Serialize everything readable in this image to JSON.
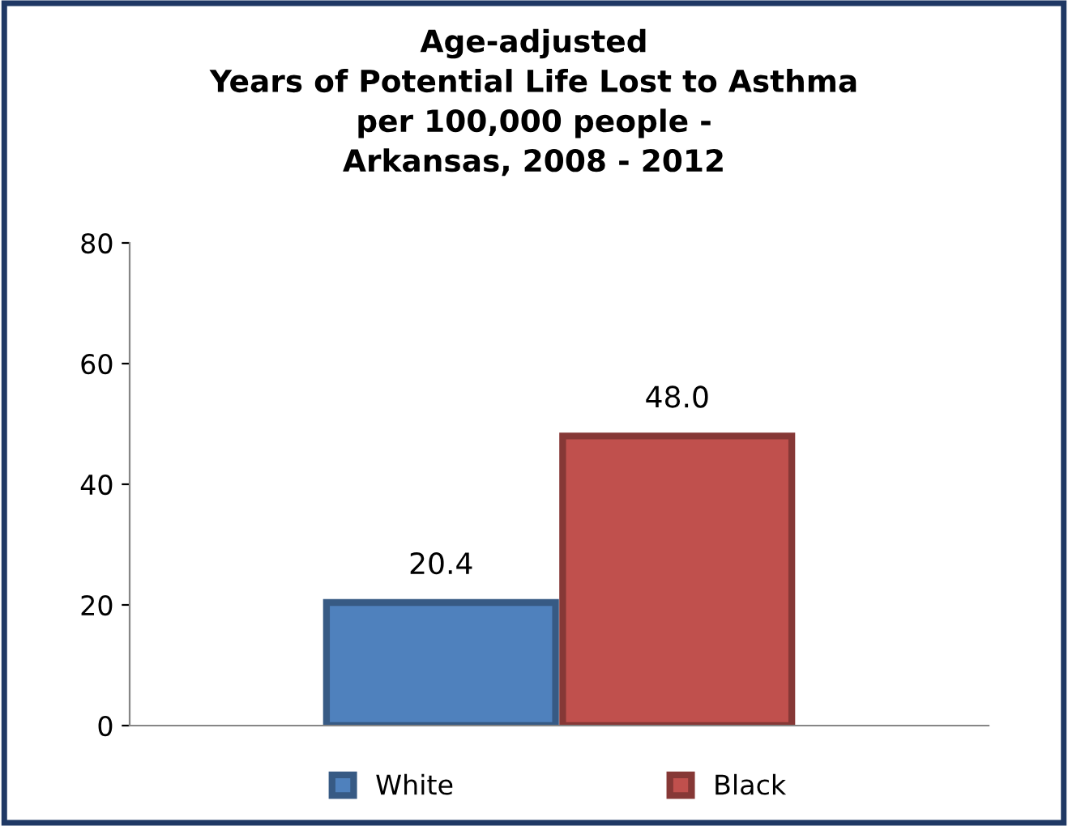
{
  "chart_data": {
    "type": "bar",
    "title": "Age-adjusted\nYears of Potential Life Lost to Asthma\nper 100,000 people -\nArkansas, 2008 - 2012",
    "categories": [
      null
    ],
    "series": [
      {
        "name": "White",
        "color": "#4f81bd",
        "values": [
          20.4
        ],
        "value_labels": [
          "20.4"
        ]
      },
      {
        "name": "Black",
        "color": "#c0504d",
        "values": [
          48.0
        ],
        "value_labels": [
          "48.0"
        ]
      }
    ],
    "ylim": [
      0,
      80
    ],
    "yticks": [
      0,
      20,
      40,
      60,
      80
    ],
    "grid": false,
    "legend": "bottom"
  }
}
